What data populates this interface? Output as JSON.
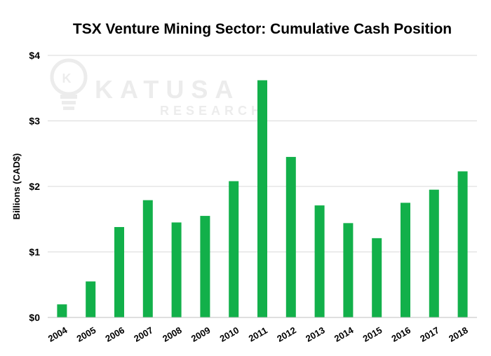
{
  "chart_data": {
    "type": "bar",
    "title": "TSX Venture Mining Sector: Cumulative Cash Position",
    "ylabel": "Billions (CAD$)",
    "xlabel": "",
    "categories": [
      "2004",
      "2005",
      "2006",
      "2007",
      "2008",
      "2009",
      "2010",
      "2011",
      "2012",
      "2013",
      "2014",
      "2015",
      "2016",
      "2017",
      "2018"
    ],
    "values": [
      0.2,
      0.55,
      1.38,
      1.79,
      1.45,
      1.55,
      2.08,
      3.62,
      2.45,
      1.71,
      1.44,
      1.21,
      1.75,
      1.95,
      2.23
    ],
    "ylim": [
      0,
      4
    ],
    "yticks": [
      0,
      1,
      2,
      3,
      4
    ],
    "ytick_labels": [
      "$0",
      "$1",
      "$2",
      "$3",
      "$4"
    ],
    "grid": true,
    "bar_color": "#12b04a",
    "grid_color": "#d9d9d9"
  },
  "watermark": {
    "logo_letter": "K",
    "line1": "KATUSA",
    "line2": "RESEARCH"
  }
}
